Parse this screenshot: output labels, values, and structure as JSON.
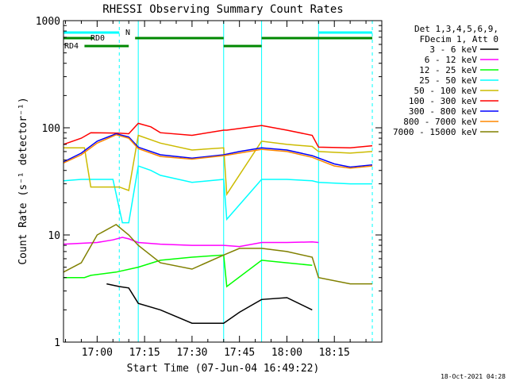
{
  "chart_data": {
    "type": "line",
    "title": "RHESSI Observing Summary Count Rates",
    "xlabel": "Start Time (07-Jun-04 16:49:22)",
    "ylabel": "Count Rate (s⁻¹ detector⁻¹)",
    "yscale": "log",
    "ylim": [
      1,
      1000
    ],
    "y_ticks": [
      {
        "value": 1,
        "label": "1"
      },
      {
        "value": 10,
        "label": "10"
      },
      {
        "value": 100,
        "label": "100"
      },
      {
        "value": 1000,
        "label": "1000"
      }
    ],
    "xlim": [
      "16:49:22",
      "18:30"
    ],
    "x_ticks": [
      {
        "value": "17:00",
        "label": "17:00"
      },
      {
        "value": "17:15",
        "label": "17:15"
      },
      {
        "value": "17:30",
        "label": "17:30"
      },
      {
        "value": "17:45",
        "label": "17:45"
      },
      {
        "value": "18:00",
        "label": "18:00"
      },
      {
        "value": "18:15",
        "label": "18:15"
      }
    ],
    "legend_position": "right",
    "legend_header": [
      "Det 1,3,4,5,6,9,",
      "FDecim 1, Att 0"
    ],
    "footer_date": "18-Oct-2021 04:28",
    "flag_bars": {
      "cyan_label": "N",
      "green_labels": [
        "RD0",
        "RD4"
      ],
      "cyan_segments": [
        [
          "16:49:22",
          "17:07"
        ],
        [
          "18:10",
          "18:27"
        ]
      ],
      "green_upper_segments": [
        [
          "16:49:22",
          "16:59"
        ],
        [
          "17:12",
          "17:40"
        ],
        [
          "17:52",
          "18:27"
        ]
      ],
      "green_lower_segments": [
        [
          "16:56",
          "17:10"
        ],
        [
          "17:40",
          "17:52"
        ]
      ],
      "dashed_lines": [
        "17:07",
        "18:27"
      ],
      "solid_lines": [
        "16:49:22",
        "17:13",
        "17:40",
        "17:52",
        "18:10"
      ]
    },
    "series": [
      {
        "name": "3 - 6 keV",
        "color": "#000000",
        "x": [
          "17:03",
          "17:07",
          "17:10",
          "17:13",
          "17:20",
          "17:30",
          "17:40",
          "17:45",
          "17:52",
          "18:00",
          "18:08"
        ],
        "y": [
          3.5,
          3.3,
          3.2,
          2.3,
          2.0,
          1.5,
          1.5,
          1.9,
          2.5,
          2.6,
          2.0
        ]
      },
      {
        "name": "6 - 12 keV",
        "color": "#ff00ff",
        "x": [
          "16:49:22",
          "17:00",
          "17:05",
          "17:08",
          "17:10",
          "17:13",
          "17:20",
          "17:30",
          "17:40",
          "17:45",
          "17:52",
          "18:00",
          "18:08",
          "18:10"
        ],
        "y": [
          8.2,
          8.5,
          9.0,
          9.5,
          9.2,
          8.5,
          8.2,
          8.0,
          8.0,
          7.8,
          8.5,
          8.5,
          8.6,
          8.5
        ]
      },
      {
        "name": "12 - 25 keV",
        "color": "#00ff00",
        "x": [
          "16:49:22",
          "16:56",
          "16:58",
          "17:06",
          "17:13",
          "17:20",
          "17:30",
          "17:40",
          "17:41",
          "17:52",
          "18:00",
          "18:08"
        ],
        "y": [
          4.0,
          4.0,
          4.2,
          4.5,
          5.0,
          5.8,
          6.2,
          6.5,
          3.3,
          5.8,
          5.5,
          5.2
        ]
      },
      {
        "name": "25 - 50 keV",
        "color": "#00ffff",
        "x": [
          "16:49:22",
          "16:55",
          "17:00",
          "17:05",
          "17:08",
          "17:10",
          "17:13",
          "17:17",
          "17:20",
          "17:30",
          "17:40",
          "17:41",
          "17:52",
          "18:00",
          "18:08",
          "18:10",
          "18:20",
          "18:27"
        ],
        "y": [
          32,
          33,
          33,
          33,
          13,
          13,
          44,
          40,
          36,
          31,
          33,
          14,
          33,
          33,
          32,
          31,
          30,
          30
        ]
      },
      {
        "name": "50 - 100 keV",
        "color": "#ccbb00",
        "x": [
          "16:49:22",
          "16:56",
          "16:58",
          "17:07",
          "17:10",
          "17:13",
          "17:20",
          "17:30",
          "17:40",
          "17:41",
          "17:52",
          "18:00",
          "18:08",
          "18:10",
          "18:20",
          "18:27"
        ],
        "y": [
          65,
          65,
          28,
          28,
          26,
          85,
          72,
          62,
          65,
          24,
          75,
          70,
          67,
          60,
          58,
          60
        ]
      },
      {
        "name": "100 - 300 keV",
        "color": "#ff0000",
        "x": [
          "16:49:22",
          "16:55",
          "16:58",
          "17:07",
          "17:10",
          "17:13",
          "17:17",
          "17:20",
          "17:30",
          "17:40",
          "17:41",
          "17:52",
          "18:00",
          "18:08",
          "18:10",
          "18:20",
          "18:27"
        ],
        "y": [
          70,
          80,
          90,
          89,
          88,
          110,
          102,
          90,
          85,
          95,
          95,
          105,
          95,
          85,
          66,
          65,
          68
        ]
      },
      {
        "name": "300 - 800 keV",
        "color": "#0000ff",
        "x": [
          "16:49:22",
          "16:55",
          "17:00",
          "17:06",
          "17:10",
          "17:13",
          "17:20",
          "17:30",
          "17:40",
          "17:45",
          "17:52",
          "18:00",
          "18:08",
          "18:15",
          "18:20",
          "18:27"
        ],
        "y": [
          48,
          58,
          75,
          88,
          82,
          66,
          56,
          52,
          56,
          60,
          65,
          62,
          55,
          46,
          43,
          45
        ]
      },
      {
        "name": "800 - 7000 keV",
        "color": "#ff8800",
        "x": [
          "16:49:22",
          "16:55",
          "17:00",
          "17:06",
          "17:10",
          "17:13",
          "17:20",
          "17:30",
          "17:40",
          "17:45",
          "17:52",
          "18:00",
          "18:08",
          "18:15",
          "18:20",
          "18:27"
        ],
        "y": [
          47,
          56,
          72,
          86,
          80,
          64,
          54,
          51,
          55,
          58,
          63,
          60,
          53,
          44,
          42,
          44
        ]
      },
      {
        "name": "7000 - 15000 keV",
        "color": "#808000",
        "x": [
          "16:49:22",
          "16:55",
          "17:00",
          "17:06",
          "17:10",
          "17:13",
          "17:20",
          "17:30",
          "17:40",
          "17:45",
          "17:52",
          "18:00",
          "18:08",
          "18:10",
          "18:20",
          "18:27"
        ],
        "y": [
          4.5,
          5.5,
          10,
          12.5,
          10,
          8,
          5.5,
          4.8,
          6.5,
          7.5,
          7.5,
          7.0,
          6.2,
          4.0,
          3.5,
          3.5
        ]
      }
    ]
  }
}
